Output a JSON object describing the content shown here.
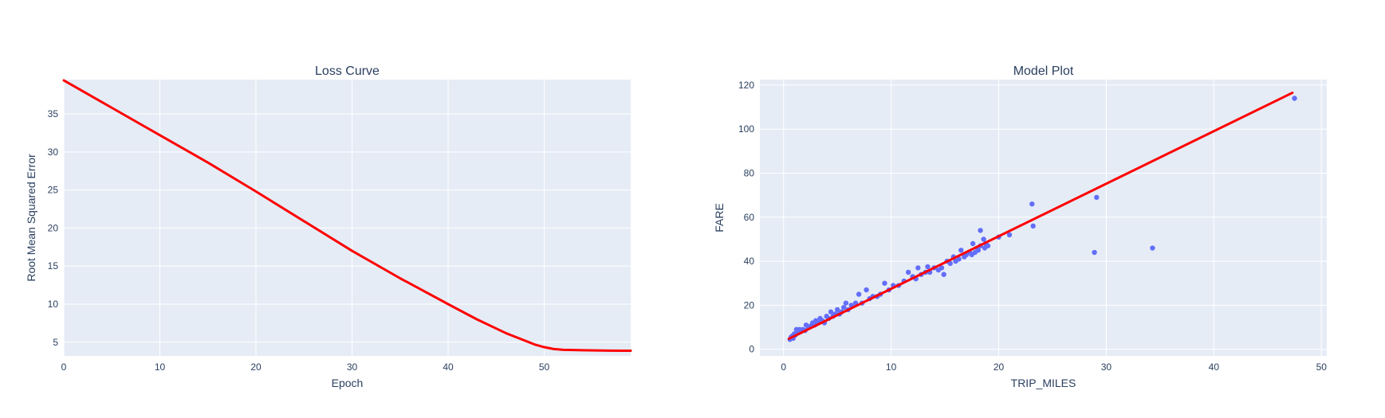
{
  "colors": {
    "plot_bg": "#e5ecf6",
    "grid": "#ffffff",
    "text": "#2a3f5f",
    "line": "#ff0000",
    "marker": "#636efa"
  },
  "chart_data": [
    {
      "type": "line",
      "title": "Loss Curve",
      "xlabel": "Epoch",
      "ylabel": "Root Mean Squared Error",
      "xlim": [
        0,
        59
      ],
      "ylim": [
        3.2,
        39.5
      ],
      "xticks": [
        0,
        10,
        20,
        30,
        40,
        50
      ],
      "yticks": [
        5,
        10,
        15,
        20,
        25,
        30,
        35
      ],
      "grid": true,
      "series": [
        {
          "x": [
            0,
            5,
            10,
            15,
            20,
            25,
            30,
            35,
            40,
            43,
            46,
            48,
            49,
            50,
            51,
            52,
            54,
            56,
            58,
            59
          ],
          "y": [
            39.4,
            35.8,
            32.2,
            28.6,
            24.8,
            20.9,
            17.0,
            13.4,
            10.0,
            8.0,
            6.2,
            5.2,
            4.7,
            4.35,
            4.1,
            4.0,
            3.95,
            3.9,
            3.88,
            3.88
          ]
        }
      ]
    },
    {
      "type": "scatter",
      "title": "Model Plot",
      "xlabel": "TRIP_MILES",
      "ylabel": "FARE",
      "xlim": [
        -2.2,
        50.5
      ],
      "ylim": [
        -3,
        122.5
      ],
      "xticks": [
        0,
        10,
        20,
        30,
        40,
        50
      ],
      "yticks": [
        0,
        20,
        40,
        60,
        80,
        100,
        120
      ],
      "grid": true,
      "series": [
        {
          "mode": "markers",
          "points": [
            [
              0.6,
              4.5
            ],
            [
              0.7,
              5.5
            ],
            [
              0.8,
              6
            ],
            [
              0.9,
              5
            ],
            [
              1.0,
              7
            ],
            [
              1.1,
              6.5
            ],
            [
              1.2,
              9
            ],
            [
              1.3,
              8
            ],
            [
              1.4,
              7.5
            ],
            [
              1.5,
              9
            ],
            [
              1.6,
              8
            ],
            [
              1.8,
              9
            ],
            [
              2.0,
              8.5
            ],
            [
              2.1,
              11
            ],
            [
              2.3,
              10
            ],
            [
              2.5,
              10.5
            ],
            [
              2.7,
              12
            ],
            [
              2.9,
              11
            ],
            [
              3.0,
              13
            ],
            [
              3.2,
              12
            ],
            [
              3.4,
              14
            ],
            [
              3.6,
              13
            ],
            [
              3.8,
              12
            ],
            [
              4.0,
              15
            ],
            [
              4.2,
              14
            ],
            [
              4.4,
              17
            ],
            [
              4.6,
              15
            ],
            [
              4.8,
              16
            ],
            [
              5.0,
              18
            ],
            [
              5.2,
              16
            ],
            [
              5.4,
              17
            ],
            [
              5.6,
              19
            ],
            [
              5.8,
              21
            ],
            [
              6.0,
              18
            ],
            [
              6.3,
              20
            ],
            [
              6.7,
              21
            ],
            [
              7.0,
              25
            ],
            [
              7.3,
              21
            ],
            [
              7.7,
              27
            ],
            [
              8.0,
              23
            ],
            [
              8.3,
              24
            ],
            [
              8.7,
              24
            ],
            [
              9.0,
              25
            ],
            [
              9.4,
              30
            ],
            [
              9.8,
              27
            ],
            [
              10.2,
              29
            ],
            [
              10.7,
              29
            ],
            [
              11.2,
              31
            ],
            [
              11.6,
              35
            ],
            [
              12.0,
              33
            ],
            [
              12.3,
              32
            ],
            [
              12.5,
              37
            ],
            [
              12.8,
              34
            ],
            [
              13.2,
              35
            ],
            [
              13.4,
              37.5
            ],
            [
              13.6,
              35
            ],
            [
              14.0,
              37
            ],
            [
              14.4,
              36
            ],
            [
              14.7,
              37
            ],
            [
              14.9,
              34
            ],
            [
              15.2,
              40
            ],
            [
              15.5,
              39
            ],
            [
              15.8,
              42
            ],
            [
              16.0,
              40
            ],
            [
              16.3,
              41
            ],
            [
              16.5,
              45
            ],
            [
              16.8,
              42
            ],
            [
              17.0,
              43
            ],
            [
              17.3,
              44
            ],
            [
              17.5,
              43
            ],
            [
              17.6,
              48
            ],
            [
              17.8,
              44
            ],
            [
              18.0,
              46
            ],
            [
              18.1,
              45
            ],
            [
              18.3,
              47
            ],
            [
              18.3,
              54
            ],
            [
              18.6,
              50
            ],
            [
              18.8,
              48
            ],
            [
              19.0,
              47
            ],
            [
              18.7,
              46
            ],
            [
              20.0,
              51
            ],
            [
              21.0,
              52
            ],
            [
              23.1,
              66
            ],
            [
              23.2,
              56
            ],
            [
              28.9,
              44
            ],
            [
              29.1,
              69
            ],
            [
              34.3,
              46
            ],
            [
              47.5,
              114
            ]
          ]
        },
        {
          "mode": "line",
          "x": [
            0.5,
            47.3
          ],
          "y": [
            4.8,
            116.5
          ]
        }
      ]
    }
  ]
}
